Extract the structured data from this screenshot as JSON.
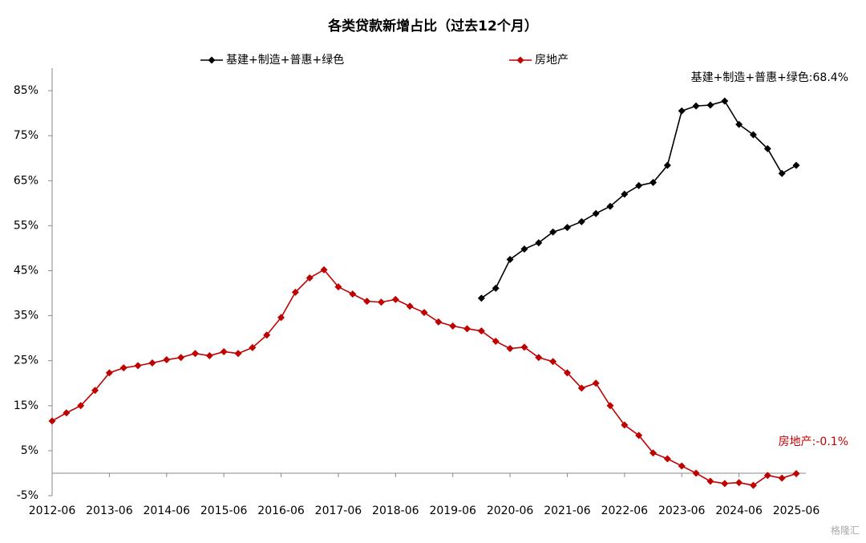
{
  "chart_data": {
    "type": "line",
    "title": "各类贷款新增占比（过去12个月）",
    "categories": [
      "2012-06",
      null,
      null,
      null,
      "2013-06",
      null,
      null,
      null,
      "2014-06",
      null,
      null,
      null,
      "2015-06",
      null,
      null,
      null,
      "2016-06",
      null,
      null,
      null,
      "2017-06",
      null,
      null,
      null,
      "2018-06",
      null,
      null,
      null,
      "2019-06",
      null,
      null,
      null,
      "2020-06",
      null,
      null,
      null,
      "2021-06",
      null,
      null,
      null,
      "2022-06",
      null,
      null,
      null,
      "2023-06",
      null,
      null,
      null,
      "2024-06",
      null,
      null,
      null,
      "2025-06"
    ],
    "series": [
      {
        "name": "基建+制造+普惠+绿色",
        "color": "#000000",
        "values": [
          null,
          null,
          null,
          null,
          null,
          null,
          null,
          null,
          null,
          null,
          null,
          null,
          null,
          null,
          null,
          null,
          null,
          null,
          null,
          null,
          null,
          null,
          null,
          null,
          null,
          null,
          null,
          null,
          null,
          null,
          38.9,
          41.1,
          47.5,
          49.8,
          51.2,
          53.6,
          54.6,
          55.9,
          57.7,
          59.3,
          62.0,
          63.9,
          64.6,
          68.4,
          80.5,
          81.6,
          81.8,
          82.7,
          77.5,
          75.2,
          72.1,
          66.6,
          68.4
        ]
      },
      {
        "name": "房地产",
        "color": "#c00000",
        "values": [
          11.6,
          13.4,
          15.0,
          18.4,
          22.3,
          23.4,
          23.9,
          24.5,
          25.2,
          25.7,
          26.6,
          26.1,
          27.0,
          26.6,
          27.9,
          30.7,
          34.6,
          40.2,
          43.4,
          45.2,
          41.4,
          39.8,
          38.2,
          38.0,
          38.6,
          37.1,
          35.7,
          33.6,
          32.7,
          32.1,
          31.6,
          29.3,
          27.7,
          28.0,
          25.7,
          24.8,
          22.3,
          18.9,
          20.0,
          15.0,
          10.7,
          8.4,
          4.5,
          3.2,
          1.6,
          0,
          -1.8,
          -2.3,
          -2.1,
          -2.7,
          -0.5,
          -1.1,
          -0.1
        ]
      }
    ],
    "annotations": [
      "基建+制造+普惠+绿色:68.4%",
      "房地产:-0.1%"
    ],
    "watermark": "格隆汇",
    "ylim": [
      -5,
      90
    ],
    "yticks": [
      {
        "value": -5,
        "label": "-5%"
      },
      {
        "value": 5,
        "label": "5%"
      },
      {
        "value": 15,
        "label": "15%"
      },
      {
        "value": 25,
        "label": "25%"
      },
      {
        "value": 35,
        "label": "35%"
      },
      {
        "value": 45,
        "label": "45%"
      },
      {
        "value": 55,
        "label": "55%"
      },
      {
        "value": 65,
        "label": "65%"
      },
      {
        "value": 75,
        "label": "75%"
      },
      {
        "value": 85,
        "label": "85%"
      }
    ],
    "grid": false
  }
}
